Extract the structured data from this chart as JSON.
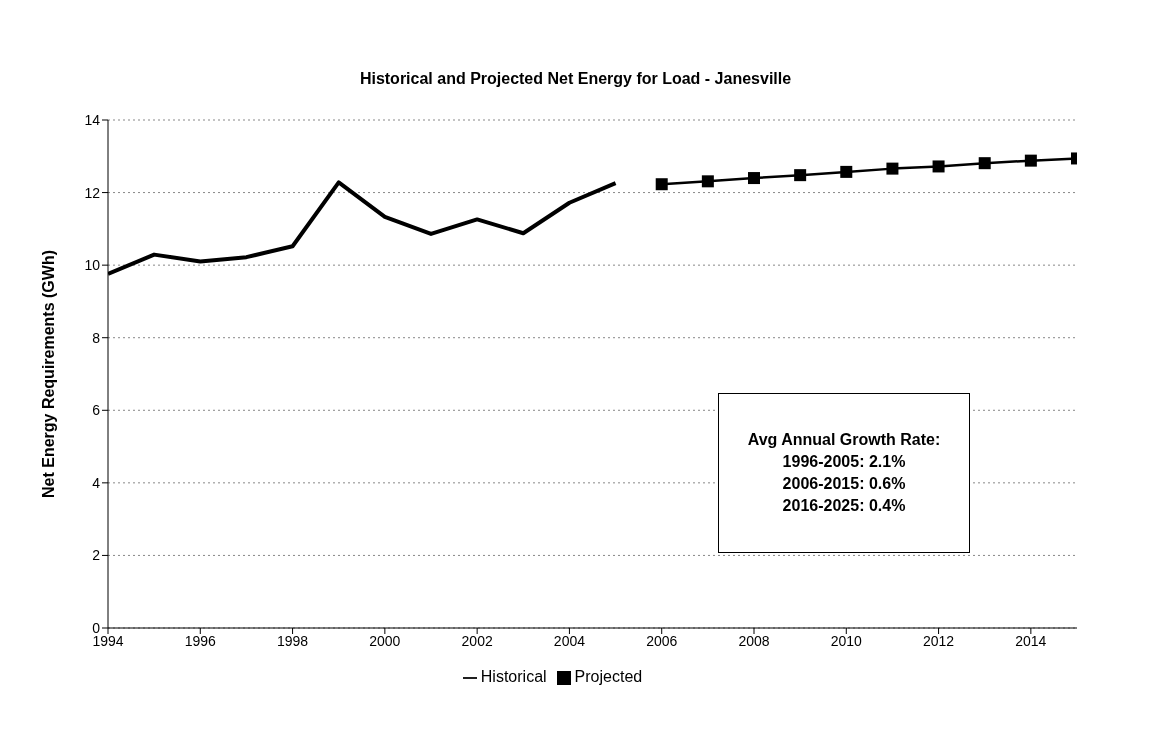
{
  "chart_data": {
    "type": "line",
    "title": "Historical and Projected Net Energy for Load - Janesville",
    "ylabel": "Net Energy Requirements (GWh)",
    "series": [
      {
        "name": "Historical",
        "color": "#000000",
        "marker": "none",
        "x": [
          1994,
          1995,
          1996,
          1997,
          1998,
          1999,
          2000,
          2001,
          2002,
          2003,
          2004,
          2005
        ],
        "values": [
          9.76,
          10.29,
          10.1,
          10.22,
          10.52,
          12.28,
          11.33,
          10.86,
          11.26,
          10.88,
          11.72,
          12.26
        ]
      },
      {
        "name": "Projected",
        "color": "#000000",
        "marker": "square",
        "x": [
          2006,
          2007,
          2008,
          2009,
          2010,
          2011,
          2012,
          2013,
          2014,
          2015
        ],
        "values": [
          12.23,
          12.31,
          12.4,
          12.48,
          12.57,
          12.66,
          12.72,
          12.81,
          12.88,
          12.94
        ]
      }
    ],
    "xlim": [
      1994,
      2015
    ],
    "xticks": [
      1994,
      1996,
      1998,
      2000,
      2002,
      2004,
      2006,
      2008,
      2010,
      2012,
      2014
    ],
    "ylim": [
      0,
      14
    ],
    "yticks": [
      0,
      2,
      4,
      6,
      8,
      10,
      12,
      14
    ],
    "grid": "y",
    "legend": "bottom",
    "line_style": "solid",
    "annotations": [
      "Avg Annual Growth Rate:",
      "1996-2005: 2.1%",
      "2006-2015: 0.6%",
      "2016-2025: 0.4%"
    ]
  }
}
